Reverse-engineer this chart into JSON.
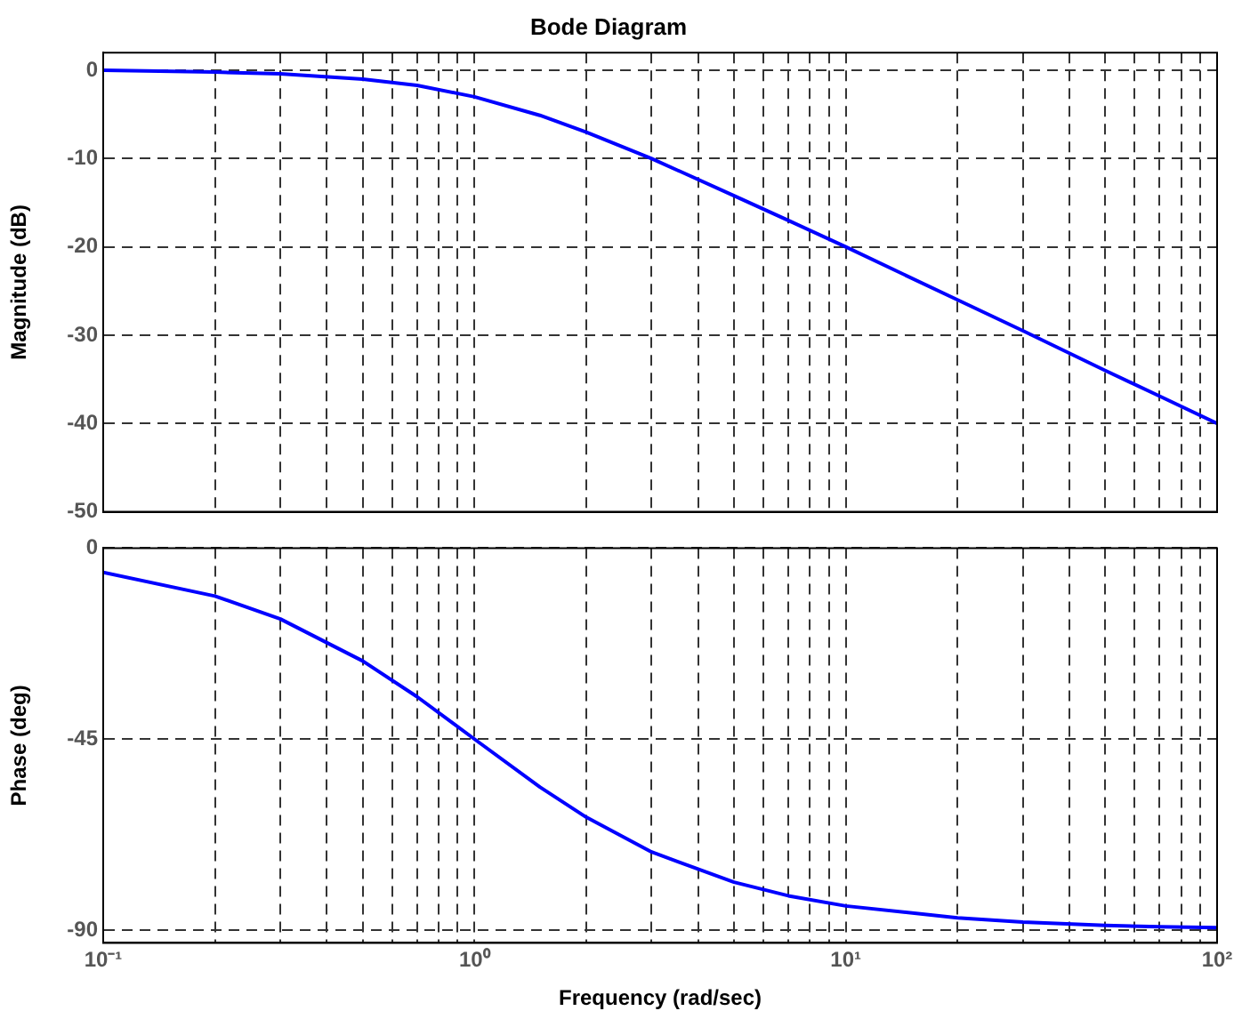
{
  "chart_data": [
    {
      "type": "line",
      "title": "Bode Diagram",
      "ylabel": "Magnitude (dB)",
      "log": "x",
      "grid": true,
      "tick_labels": "y",
      "line_style": "solid",
      "marker": "none",
      "x": [
        0.1,
        0.2,
        0.3,
        0.5,
        0.7,
        1,
        1.5,
        2,
        3,
        5,
        7,
        10,
        20,
        30,
        50,
        70,
        100
      ],
      "series": [
        {
          "color": "#0000ff",
          "values": [
            0,
            -0.2,
            -0.4,
            -1,
            -1.7,
            -3,
            -5.1,
            -7,
            -10,
            -14.2,
            -17,
            -20,
            -26,
            -29.5,
            -34,
            -36.9,
            -40
          ]
        }
      ],
      "xlim": [
        0.1,
        100
      ],
      "ylim": [
        -50,
        2
      ],
      "yticks": [
        -50,
        -40,
        -30,
        -20,
        -10,
        0
      ],
      "xticks": [
        {
          "value": 0.1,
          "label": null
        },
        {
          "value": 0.2,
          "label": null
        },
        {
          "value": 0.3,
          "label": null
        },
        {
          "value": 0.4,
          "label": null
        },
        {
          "value": 0.5,
          "label": null
        },
        {
          "value": 0.6,
          "label": null
        },
        {
          "value": 0.7,
          "label": null
        },
        {
          "value": 0.8,
          "label": null
        },
        {
          "value": 0.9,
          "label": null
        },
        {
          "value": 1,
          "label": null
        },
        {
          "value": 2,
          "label": null
        },
        {
          "value": 3,
          "label": null
        },
        {
          "value": 4,
          "label": null
        },
        {
          "value": 5,
          "label": null
        },
        {
          "value": 6,
          "label": null
        },
        {
          "value": 7,
          "label": null
        },
        {
          "value": 8,
          "label": null
        },
        {
          "value": 9,
          "label": null
        },
        {
          "value": 10,
          "label": null
        },
        {
          "value": 20,
          "label": null
        },
        {
          "value": 30,
          "label": null
        },
        {
          "value": 40,
          "label": null
        },
        {
          "value": 50,
          "label": null
        },
        {
          "value": 60,
          "label": null
        },
        {
          "value": 70,
          "label": null
        },
        {
          "value": 80,
          "label": null
        },
        {
          "value": 90,
          "label": null
        },
        {
          "value": 100,
          "label": null
        }
      ]
    },
    {
      "type": "line",
      "xlabel": "Frequency (rad/sec)",
      "ylabel": "Phase (deg)",
      "log": "x",
      "grid": true,
      "line_style": "solid",
      "marker": "none",
      "x": [
        0.1,
        0.2,
        0.3,
        0.5,
        0.7,
        1,
        1.5,
        2,
        3,
        5,
        7,
        10,
        20,
        30,
        50,
        70,
        100
      ],
      "series": [
        {
          "color": "#0000ff",
          "values": [
            -5.7,
            -11.3,
            -16.7,
            -26.6,
            -35,
            -45,
            -56.3,
            -63.4,
            -71.6,
            -78.7,
            -81.9,
            -84.3,
            -87.1,
            -88.1,
            -88.9,
            -89.2,
            -89.4
          ]
        }
      ],
      "xlim": [
        0.1,
        100
      ],
      "ylim": [
        -93,
        0
      ],
      "yticks": [
        -90,
        -45,
        0
      ],
      "xticks": [
        {
          "value": 0.1,
          "label": "10⁻¹"
        },
        {
          "value": 0.2,
          "label": null
        },
        {
          "value": 0.3,
          "label": null
        },
        {
          "value": 0.4,
          "label": null
        },
        {
          "value": 0.5,
          "label": null
        },
        {
          "value": 0.6,
          "label": null
        },
        {
          "value": 0.7,
          "label": null
        },
        {
          "value": 0.8,
          "label": null
        },
        {
          "value": 0.9,
          "label": null
        },
        {
          "value": 1,
          "label": "10⁰"
        },
        {
          "value": 2,
          "label": null
        },
        {
          "value": 3,
          "label": null
        },
        {
          "value": 4,
          "label": null
        },
        {
          "value": 5,
          "label": null
        },
        {
          "value": 6,
          "label": null
        },
        {
          "value": 7,
          "label": null
        },
        {
          "value": 8,
          "label": null
        },
        {
          "value": 9,
          "label": null
        },
        {
          "value": 10,
          "label": "10¹"
        },
        {
          "value": 20,
          "label": null
        },
        {
          "value": 30,
          "label": null
        },
        {
          "value": 40,
          "label": null
        },
        {
          "value": 50,
          "label": null
        },
        {
          "value": 60,
          "label": null
        },
        {
          "value": 70,
          "label": null
        },
        {
          "value": 80,
          "label": null
        },
        {
          "value": 90,
          "label": null
        },
        {
          "value": 100,
          "label": "10²"
        }
      ]
    }
  ]
}
